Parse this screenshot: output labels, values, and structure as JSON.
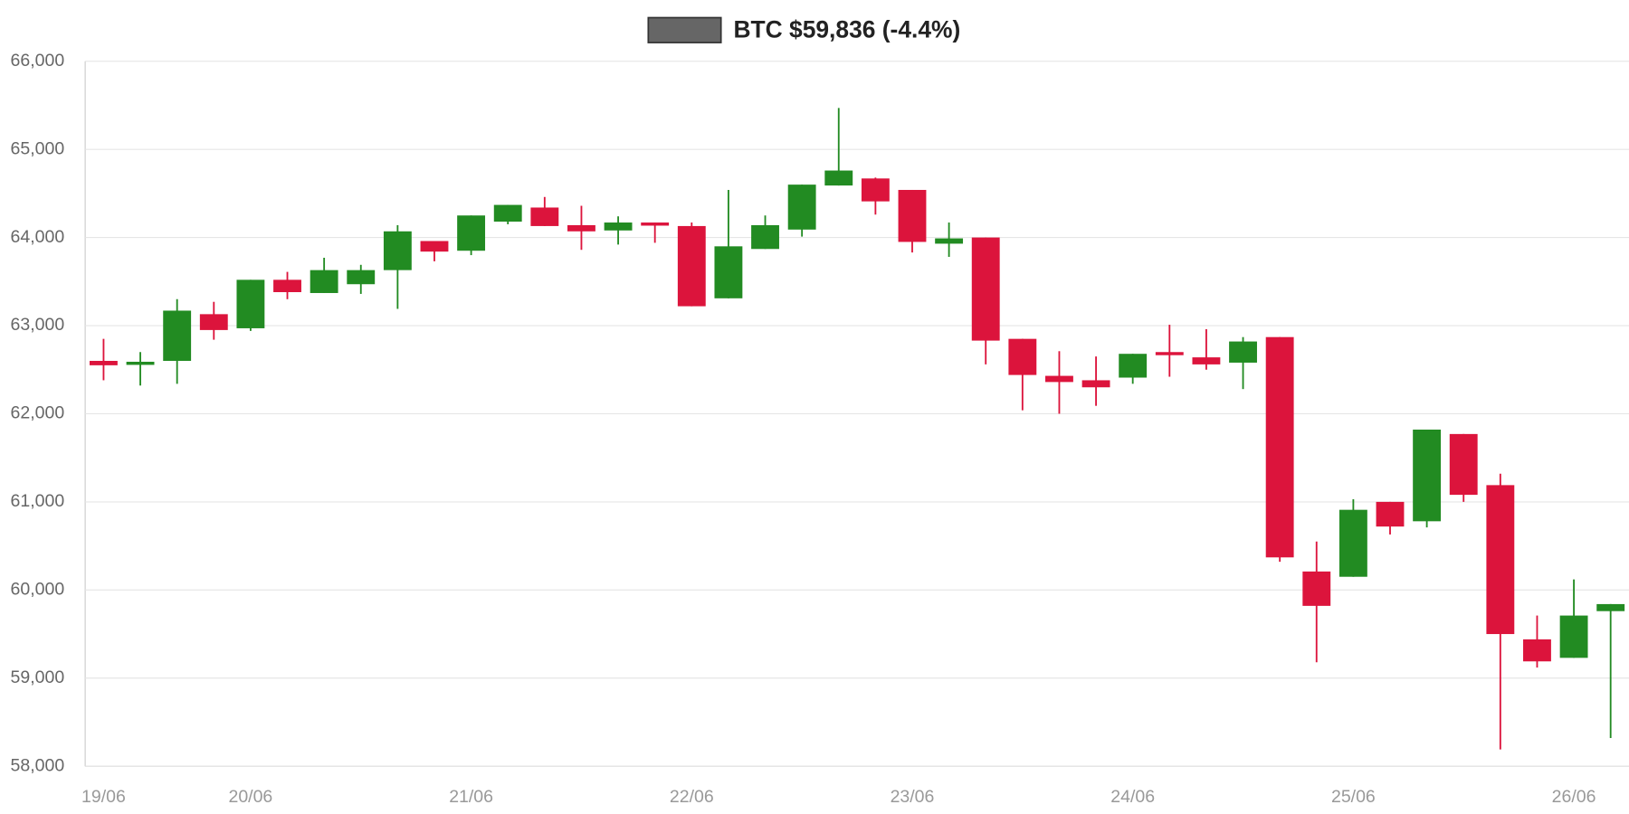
{
  "chart_data": {
    "type": "candlestick",
    "categories": [
      "19/06",
      null,
      null,
      null,
      "20/06",
      null,
      null,
      null,
      null,
      null,
      "21/06",
      null,
      null,
      null,
      null,
      null,
      "22/06",
      null,
      null,
      null,
      null,
      null,
      "23/06",
      null,
      null,
      null,
      null,
      null,
      "24/06",
      null,
      null,
      null,
      null,
      null,
      "25/06",
      null,
      null,
      null,
      null,
      null,
      "26/06",
      null
    ],
    "series": [
      {
        "name": "BTC $59,836 (-4.4%)",
        "color": "#666666",
        "up_color": "#228b22",
        "down_color": "#dc143c",
        "open": [
          62600,
          62560,
          62600,
          63130,
          62970,
          63520,
          63370,
          63470,
          63630,
          63960,
          63850,
          64180,
          64340,
          64140,
          64080,
          64170,
          64130,
          63310,
          63870,
          64090,
          64590,
          64670,
          64540,
          63930,
          64000,
          62850,
          62430,
          62380,
          62410,
          62700,
          62640,
          62580,
          62870,
          60210,
          60150,
          61000,
          60780,
          61770,
          61190,
          59440,
          59230,
          59760
        ],
        "high": [
          62850,
          62700,
          63300,
          63270,
          63520,
          63610,
          63770,
          63690,
          64140,
          63960,
          64250,
          64370,
          64460,
          64360,
          64240,
          64170,
          64170,
          64540,
          64250,
          64600,
          65470,
          64680,
          64540,
          64170,
          64000,
          62850,
          62710,
          62650,
          62680,
          63010,
          62960,
          62870,
          62870,
          60550,
          61030,
          61000,
          61820,
          61770,
          61320,
          59710,
          60120,
          59840
        ],
        "low": [
          62380,
          62320,
          62340,
          62840,
          62940,
          63300,
          63370,
          63360,
          63190,
          63730,
          63800,
          64150,
          64130,
          63860,
          63920,
          63940,
          63220,
          63310,
          63870,
          64010,
          64590,
          64260,
          63830,
          63780,
          62560,
          62040,
          62000,
          62090,
          62340,
          62420,
          62500,
          62280,
          60320,
          59180,
          60150,
          60630,
          60710,
          61000,
          58190,
          59120,
          59230,
          58320
        ],
        "close": [
          62550,
          62590,
          63170,
          62950,
          63520,
          63380,
          63630,
          63630,
          64070,
          63840,
          64250,
          64370,
          64130,
          64070,
          64170,
          64140,
          63220,
          63900,
          64140,
          64600,
          64760,
          64410,
          63950,
          63990,
          62830,
          62440,
          62360,
          62300,
          62680,
          62670,
          62560,
          62820,
          60370,
          59820,
          60910,
          60720,
          61820,
          61080,
          59500,
          59190,
          59710,
          59840
        ]
      }
    ],
    "ylim": [
      58000,
      66000
    ],
    "yticks": [
      {
        "value": 58000,
        "label": "58,000"
      },
      {
        "value": 59000,
        "label": "59,000"
      },
      {
        "value": 60000,
        "label": "60,000"
      },
      {
        "value": 61000,
        "label": "61,000"
      },
      {
        "value": 62000,
        "label": "62,000"
      },
      {
        "value": 63000,
        "label": "63,000"
      },
      {
        "value": 64000,
        "label": "64,000"
      },
      {
        "value": 65000,
        "label": "65,000"
      },
      {
        "value": 66000,
        "label": "66,000"
      }
    ],
    "grid": true
  }
}
